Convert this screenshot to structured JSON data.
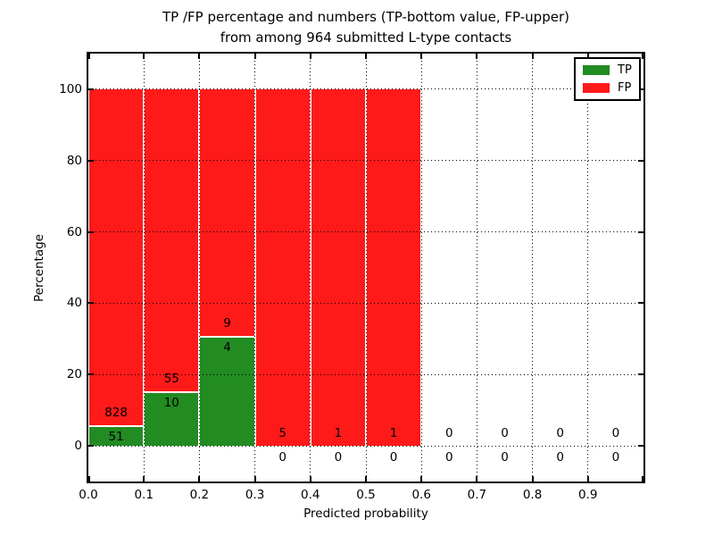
{
  "figure": {
    "title_line1": "TP /FP percentage and numbers (TP-bottom value, FP-upper)",
    "title_line2": "from among 964 submitted L-type contacts"
  },
  "chart_data": {
    "type": "bar",
    "stacked": true,
    "normalization": "each bin with data scaled to 100% (TP bottom, FP top)",
    "title": "TP /FP percentage and numbers (TP-bottom value, FP-upper) from among 964 submitted L-type contacts",
    "xlabel": "Predicted probability",
    "ylabel": "Percentage",
    "xlim": [
      0.0,
      1.0
    ],
    "ylim": [
      -10,
      110
    ],
    "bin_width": 0.1,
    "grid": "dotted black, both axes",
    "x_tick_labels": [
      "0.0",
      "0.1",
      "0.2",
      "0.3",
      "0.4",
      "0.5",
      "0.6",
      "0.7",
      "0.8",
      "0.9"
    ],
    "y_ticks": [
      0,
      20,
      40,
      60,
      80,
      100
    ],
    "y_tick_labels": [
      "0",
      "20",
      "40",
      "60",
      "80",
      "100"
    ],
    "categories": [
      "0.0-0.1",
      "0.1-0.2",
      "0.2-0.3",
      "0.3-0.4",
      "0.4-0.5",
      "0.5-0.6",
      "0.6-0.7",
      "0.7-0.8",
      "0.8-0.9",
      "0.9-1.0"
    ],
    "series": [
      {
        "name": "TP",
        "color": "#228b22",
        "counts": [
          51,
          10,
          4,
          0,
          0,
          0,
          0,
          0,
          0,
          0
        ]
      },
      {
        "name": "FP",
        "color": "#ff1a1a",
        "counts": [
          828,
          55,
          9,
          5,
          1,
          1,
          0,
          0,
          0,
          0
        ]
      }
    ],
    "tp_percent_of_bin": [
      5.8,
      15.4,
      30.8,
      0,
      0,
      0,
      null,
      null,
      null,
      null
    ],
    "bars_drawn_for_bins": [
      true,
      true,
      true,
      true,
      true,
      true,
      false,
      false,
      false,
      false
    ],
    "legend": {
      "position": "upper right",
      "items": [
        {
          "label": "TP",
          "color": "#228b22"
        },
        {
          "label": "FP",
          "color": "#ff1a1a"
        }
      ]
    }
  }
}
